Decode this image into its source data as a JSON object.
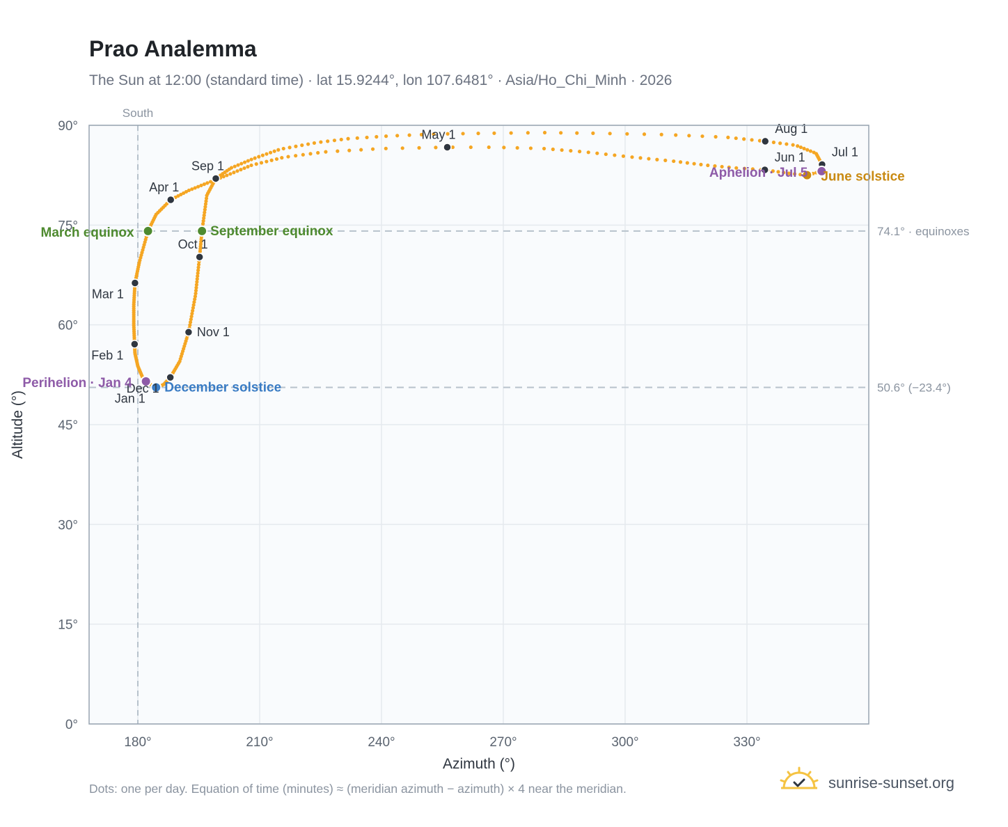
{
  "header": {
    "title": "Prao Analemma",
    "subtitle": "The Sun at 12:00 (standard time) · lat 15.9244°, lon 107.6481° · Asia/Ho_Chi_Minh · 2026"
  },
  "footer": {
    "note": "Dots: one per day. Equation of time (minutes) ≈ (meridian azimuth − azimuth) × 4 near the meridian.",
    "brand": "sunrise-sunset.org"
  },
  "colors": {
    "path": "#f5a623",
    "month_marker": "#2f3640",
    "equinox": "#4e8a2f",
    "december_solstice": "#3a7cc4",
    "june_solstice": "#c98a12",
    "apsis": "#8e5ba8",
    "plot_bg": "#f9fbfd",
    "grid": "#e5e9ee",
    "reference_line": "#b7c2cc"
  },
  "chart_data": {
    "type": "scatter",
    "xlabel": "Azimuth (°)",
    "ylabel": "Altitude (°)",
    "xlim": [
      168,
      360
    ],
    "ylim": [
      0,
      90
    ],
    "xticks": [
      180,
      210,
      240,
      270,
      300,
      330
    ],
    "yticks": [
      0,
      15,
      30,
      45,
      60,
      75,
      90
    ],
    "xtick_labels": [
      "180°",
      "210°",
      "240°",
      "270°",
      "300°",
      "330°"
    ],
    "ytick_labels": [
      "0°",
      "15°",
      "30°",
      "45°",
      "60°",
      "75°",
      "90°"
    ],
    "grid": true,
    "meridian": {
      "azimuth": 180,
      "label": "South"
    },
    "reference_lines": [
      {
        "altitude": 74.1,
        "label": "74.1° · equinoxes"
      },
      {
        "altitude": 50.6,
        "label": "50.6° (−23.4°)"
      }
    ],
    "month_markers": [
      {
        "label": "Jan 1",
        "az": 184.6,
        "alt": 50.6,
        "label_pos": "left-below"
      },
      {
        "label": "Feb 1",
        "az": 179.2,
        "alt": 57.1,
        "label_pos": "left-below"
      },
      {
        "label": "Mar 1",
        "az": 179.3,
        "alt": 66.3,
        "label_pos": "left-below"
      },
      {
        "label": "Apr 1",
        "az": 188.1,
        "alt": 78.8,
        "label_pos": "left-above"
      },
      {
        "label": "May 1",
        "az": 256.2,
        "alt": 86.7,
        "label_pos": "left-above"
      },
      {
        "label": "Jun 1",
        "az": 334.4,
        "alt": 83.3,
        "label_pos": "right-above"
      },
      {
        "label": "Jul 1",
        "az": 348.5,
        "alt": 84.1,
        "label_pos": "right-above"
      },
      {
        "label": "Aug 1",
        "az": 334.5,
        "alt": 87.6,
        "label_pos": "right-above"
      },
      {
        "label": "Sep 1",
        "az": 199.2,
        "alt": 82.0,
        "label_pos": "left-above"
      },
      {
        "label": "Oct 1",
        "az": 195.2,
        "alt": 70.2,
        "label_pos": "left-above"
      },
      {
        "label": "Nov 1",
        "az": 192.5,
        "alt": 58.9,
        "label_pos": "right"
      },
      {
        "label": "Dec 1",
        "az": 188.0,
        "alt": 52.1,
        "label_pos": "left-below"
      }
    ],
    "events": [
      {
        "label": "March equinox",
        "az": 182.5,
        "alt": 74.1,
        "kind": "equinox",
        "label_pos": "left"
      },
      {
        "label": "September equinox",
        "az": 195.8,
        "alt": 74.1,
        "kind": "equinox",
        "label_pos": "right"
      },
      {
        "label": "December solstice",
        "az": 184.5,
        "alt": 50.6,
        "kind": "december_solstice",
        "label_pos": "right"
      },
      {
        "label": "June solstice",
        "az": 344.8,
        "alt": 82.5,
        "kind": "june_solstice",
        "label_pos": "right-below"
      },
      {
        "label": "Perihelion · Jan 4",
        "az": 182.0,
        "alt": 51.5,
        "kind": "apsis",
        "label_pos": "left"
      },
      {
        "label": "Aphelion · Jul 5",
        "az": 348.4,
        "alt": 83.1,
        "kind": "apsis",
        "label_pos": "left"
      }
    ],
    "path_keypoints": [
      [
        184.5,
        50.6
      ],
      [
        182.6,
        51.2
      ],
      [
        181.1,
        52.2
      ],
      [
        180.0,
        53.8
      ],
      [
        179.3,
        55.7
      ],
      [
        179.2,
        57.1
      ],
      [
        179.0,
        60.0
      ],
      [
        179.0,
        63.0
      ],
      [
        179.3,
        66.3
      ],
      [
        180.4,
        69.5
      ],
      [
        182.5,
        74.1
      ],
      [
        184.5,
        76.6
      ],
      [
        188.1,
        78.8
      ],
      [
        192.5,
        80.2
      ],
      [
        197.0,
        81.3
      ],
      [
        202.0,
        82.5
      ],
      [
        208.0,
        84.0
      ],
      [
        216.0,
        85.2
      ],
      [
        226.0,
        86.0
      ],
      [
        240.0,
        86.5
      ],
      [
        256.2,
        86.7
      ],
      [
        268.0,
        86.7
      ],
      [
        280.0,
        86.5
      ],
      [
        290.0,
        86.0
      ],
      [
        302.0,
        85.2
      ],
      [
        312.0,
        84.6
      ],
      [
        320.0,
        84.0
      ],
      [
        327.0,
        83.6
      ],
      [
        334.4,
        83.3
      ],
      [
        340.0,
        82.8
      ],
      [
        344.8,
        82.5
      ],
      [
        348.4,
        83.1
      ],
      [
        348.5,
        84.1
      ],
      [
        347.0,
        85.8
      ],
      [
        342.0,
        87.0
      ],
      [
        334.5,
        87.6
      ],
      [
        325.0,
        88.2
      ],
      [
        310.0,
        88.6
      ],
      [
        293.0,
        88.8
      ],
      [
        280.0,
        88.9
      ],
      [
        266.0,
        88.8
      ],
      [
        254.0,
        88.7
      ],
      [
        242.0,
        88.4
      ],
      [
        232.0,
        88.0
      ],
      [
        224.0,
        87.4
      ],
      [
        215.0,
        86.4
      ],
      [
        208.5,
        85.0
      ],
      [
        203.0,
        83.6
      ],
      [
        199.2,
        82.0
      ],
      [
        197.0,
        79.5
      ],
      [
        195.8,
        74.1
      ],
      [
        195.2,
        70.2
      ],
      [
        194.2,
        64.5
      ],
      [
        192.5,
        58.9
      ],
      [
        190.3,
        54.5
      ],
      [
        188.0,
        52.1
      ],
      [
        186.3,
        51.0
      ],
      [
        184.5,
        50.6
      ]
    ],
    "dot_count": 365
  }
}
